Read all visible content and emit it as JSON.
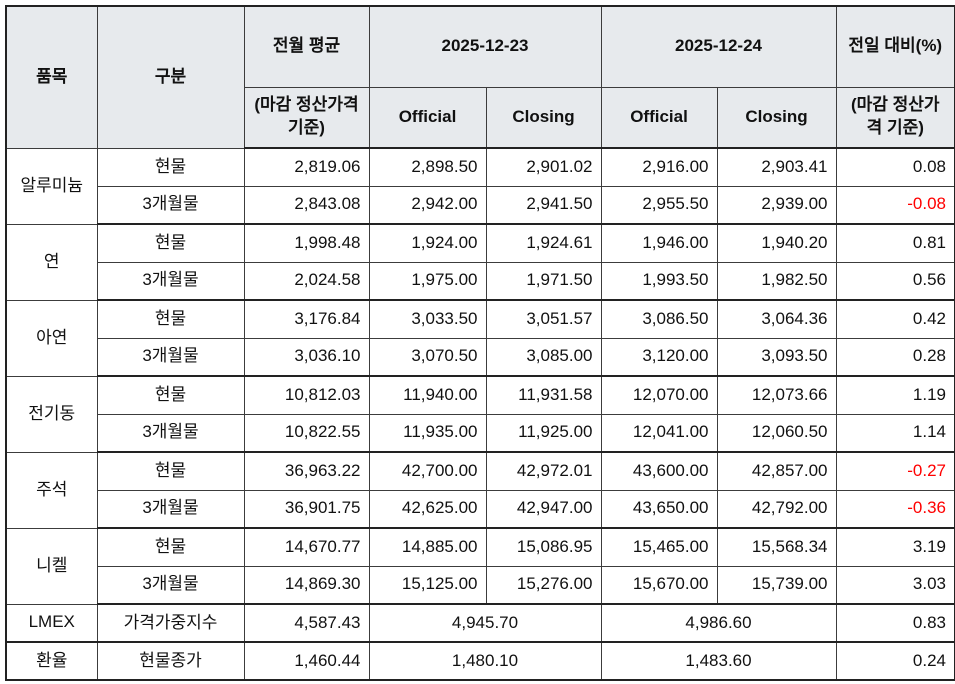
{
  "table": {
    "colors": {
      "negative": "#ff0000",
      "header_bg": "#e7eaed",
      "border": "#3c3c3c",
      "border_strong": "#222222",
      "text": "#111111"
    },
    "header": {
      "item": "품목",
      "category": "구분",
      "prev_avg": "전월 평균",
      "basis_note": "(마감 정산가격 기준)",
      "date1": "2025-12-23",
      "date2": "2025-12-24",
      "official": "Official",
      "closing": "Closing",
      "change": "전일 대비(%)"
    },
    "groups": [
      {
        "item": "알루미늄",
        "rows": [
          {
            "category": "현물",
            "prev_avg": "2,819.06",
            "d1_official": "2,898.50",
            "d1_closing": "2,901.02",
            "d2_official": "2,916.00",
            "d2_closing": "2,903.41",
            "change": "0.08"
          },
          {
            "category": "3개월물",
            "prev_avg": "2,843.08",
            "d1_official": "2,942.00",
            "d1_closing": "2,941.50",
            "d2_official": "2,955.50",
            "d2_closing": "2,939.00",
            "change": "-0.08"
          }
        ]
      },
      {
        "item": "연",
        "rows": [
          {
            "category": "현물",
            "prev_avg": "1,998.48",
            "d1_official": "1,924.00",
            "d1_closing": "1,924.61",
            "d2_official": "1,946.00",
            "d2_closing": "1,940.20",
            "change": "0.81"
          },
          {
            "category": "3개월물",
            "prev_avg": "2,024.58",
            "d1_official": "1,975.00",
            "d1_closing": "1,971.50",
            "d2_official": "1,993.50",
            "d2_closing": "1,982.50",
            "change": "0.56"
          }
        ]
      },
      {
        "item": "아연",
        "rows": [
          {
            "category": "현물",
            "prev_avg": "3,176.84",
            "d1_official": "3,033.50",
            "d1_closing": "3,051.57",
            "d2_official": "3,086.50",
            "d2_closing": "3,064.36",
            "change": "0.42"
          },
          {
            "category": "3개월물",
            "prev_avg": "3,036.10",
            "d1_official": "3,070.50",
            "d1_closing": "3,085.00",
            "d2_official": "3,120.00",
            "d2_closing": "3,093.50",
            "change": "0.28"
          }
        ]
      },
      {
        "item": "전기동",
        "rows": [
          {
            "category": "현물",
            "prev_avg": "10,812.03",
            "d1_official": "11,940.00",
            "d1_closing": "11,931.58",
            "d2_official": "12,070.00",
            "d2_closing": "12,073.66",
            "change": "1.19"
          },
          {
            "category": "3개월물",
            "prev_avg": "10,822.55",
            "d1_official": "11,935.00",
            "d1_closing": "11,925.00",
            "d2_official": "12,041.00",
            "d2_closing": "12,060.50",
            "change": "1.14"
          }
        ]
      },
      {
        "item": "주석",
        "rows": [
          {
            "category": "현물",
            "prev_avg": "36,963.22",
            "d1_official": "42,700.00",
            "d1_closing": "42,972.01",
            "d2_official": "43,600.00",
            "d2_closing": "42,857.00",
            "change": "-0.27"
          },
          {
            "category": "3개월물",
            "prev_avg": "36,901.75",
            "d1_official": "42,625.00",
            "d1_closing": "42,947.00",
            "d2_official": "43,650.00",
            "d2_closing": "42,792.00",
            "change": "-0.36"
          }
        ]
      },
      {
        "item": "니켈",
        "rows": [
          {
            "category": "현물",
            "prev_avg": "14,670.77",
            "d1_official": "14,885.00",
            "d1_closing": "15,086.95",
            "d2_official": "15,465.00",
            "d2_closing": "15,568.34",
            "change": "3.19"
          },
          {
            "category": "3개월물",
            "prev_avg": "14,869.30",
            "d1_official": "15,125.00",
            "d1_closing": "15,276.00",
            "d2_official": "15,670.00",
            "d2_closing": "15,739.00",
            "change": "3.03"
          }
        ]
      }
    ],
    "summary_rows": [
      {
        "item": "LMEX",
        "category": "가격가중지수",
        "prev_avg": "4,587.43",
        "d1_value": "4,945.70",
        "d2_value": "4,986.60",
        "change": "0.83"
      },
      {
        "item": "환율",
        "category": "현물종가",
        "prev_avg": "1,460.44",
        "d1_value": "1,480.10",
        "d2_value": "1,483.60",
        "change": "0.24"
      }
    ]
  }
}
